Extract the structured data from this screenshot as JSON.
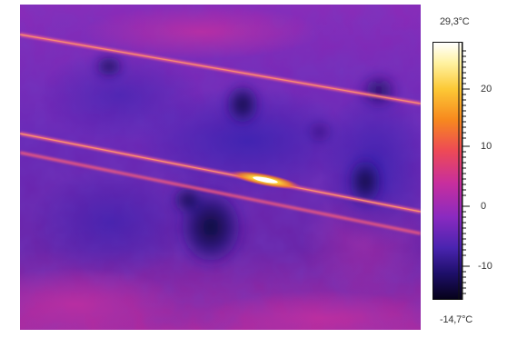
{
  "thermal_view": {
    "palette_colors": [
      "#0b0420",
      "#1e0f6a",
      "#3a22a8",
      "#7a2bc4",
      "#c72ea6",
      "#ef4d5b",
      "#f78a1e",
      "#fcc936",
      "#ffffff"
    ],
    "content": "infrared thermal image of a building facade with two diagonal warm lines and a hot spot"
  },
  "scale": {
    "max_label": "29,3°C",
    "min_label": "-14,7°C",
    "ticks": [
      {
        "label": "20"
      },
      {
        "label": "10"
      },
      {
        "label": "0"
      },
      {
        "label": "-10"
      }
    ]
  }
}
